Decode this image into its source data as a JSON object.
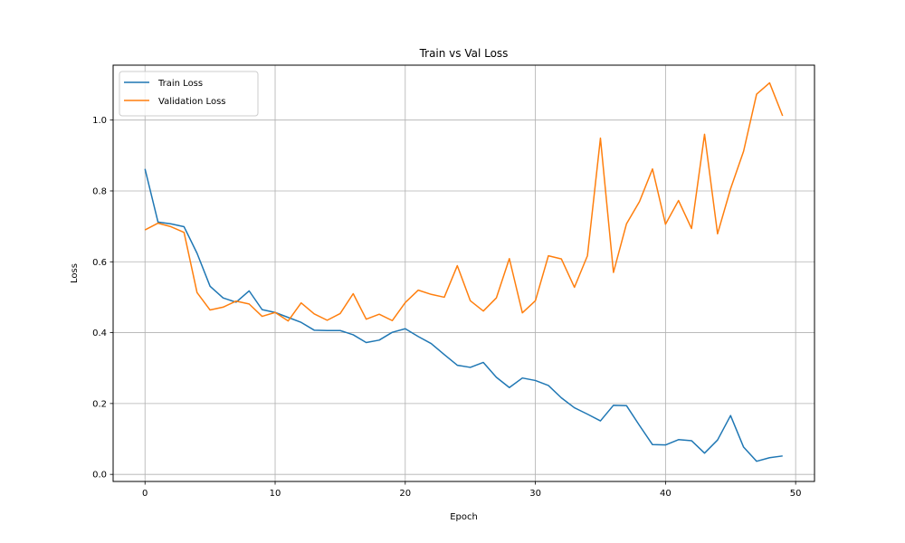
{
  "chart_data": {
    "type": "line",
    "title": "Train vs Val Loss",
    "xlabel": "Epoch",
    "ylabel": "Loss",
    "xlim": [
      -2.45,
      51.45
    ],
    "ylim": [
      -0.02,
      1.155
    ],
    "xticks": [
      0,
      10,
      20,
      30,
      40,
      50
    ],
    "yticks": [
      0.0,
      0.2,
      0.4,
      0.6,
      0.8,
      1.0
    ],
    "xtick_labels": [
      "0",
      "10",
      "20",
      "30",
      "40",
      "50"
    ],
    "ytick_labels": [
      "0.0",
      "0.2",
      "0.4",
      "0.6",
      "0.8",
      "1.0"
    ],
    "grid": true,
    "legend_position": "top-left",
    "x": [
      0,
      1,
      2,
      3,
      4,
      5,
      6,
      7,
      8,
      9,
      10,
      11,
      12,
      13,
      14,
      15,
      16,
      17,
      18,
      19,
      20,
      21,
      22,
      23,
      24,
      25,
      26,
      27,
      28,
      29,
      30,
      31,
      32,
      33,
      34,
      35,
      36,
      37,
      38,
      39,
      40,
      41,
      42,
      43,
      44,
      45,
      46,
      47,
      48,
      49
    ],
    "series": [
      {
        "name": "Train Loss",
        "color": "#1f77b4",
        "values": [
          0.862,
          0.712,
          0.707,
          0.699,
          0.624,
          0.531,
          0.498,
          0.486,
          0.518,
          0.465,
          0.457,
          0.443,
          0.429,
          0.407,
          0.406,
          0.406,
          0.394,
          0.372,
          0.379,
          0.401,
          0.411,
          0.389,
          0.369,
          0.338,
          0.308,
          0.302,
          0.316,
          0.274,
          0.245,
          0.272,
          0.265,
          0.251,
          0.216,
          0.188,
          0.17,
          0.151,
          0.195,
          0.194,
          0.138,
          0.084,
          0.083,
          0.098,
          0.095,
          0.06,
          0.097,
          0.166,
          0.077,
          0.037,
          0.047,
          0.052
        ]
      },
      {
        "name": "Validation Loss",
        "color": "#ff7f0e",
        "values": [
          0.69,
          0.709,
          0.699,
          0.683,
          0.513,
          0.464,
          0.472,
          0.489,
          0.481,
          0.446,
          0.457,
          0.433,
          0.484,
          0.453,
          0.435,
          0.454,
          0.51,
          0.438,
          0.452,
          0.434,
          0.485,
          0.52,
          0.508,
          0.5,
          0.589,
          0.49,
          0.461,
          0.498,
          0.609,
          0.456,
          0.49,
          0.617,
          0.608,
          0.528,
          0.617,
          0.949,
          0.57,
          0.707,
          0.77,
          0.862,
          0.706,
          0.773,
          0.694,
          0.96,
          0.679,
          0.806,
          0.912,
          1.073,
          1.105,
          1.012
        ]
      }
    ]
  }
}
